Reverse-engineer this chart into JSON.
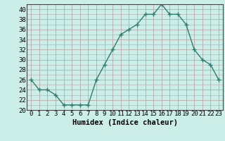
{
  "x": [
    0,
    1,
    2,
    3,
    4,
    5,
    6,
    7,
    8,
    9,
    10,
    11,
    12,
    13,
    14,
    15,
    16,
    17,
    18,
    19,
    20,
    21,
    22,
    23
  ],
  "y": [
    26,
    24,
    24,
    23,
    21,
    21,
    21,
    21,
    26,
    29,
    32,
    35,
    36,
    37,
    39,
    39,
    41,
    39,
    39,
    37,
    32,
    30,
    29,
    26
  ],
  "line_color": "#2e7d6e",
  "marker": "+",
  "marker_size": 4,
  "bg_color": "#cceee8",
  "grid_color": "#b8a8a8",
  "xlabel": "Humidex (Indice chaleur)",
  "xlim": [
    -0.5,
    23.5
  ],
  "ylim": [
    20,
    41
  ],
  "yticks": [
    20,
    22,
    24,
    26,
    28,
    30,
    32,
    34,
    36,
    38,
    40
  ],
  "xticks": [
    0,
    1,
    2,
    3,
    4,
    5,
    6,
    7,
    8,
    9,
    10,
    11,
    12,
    13,
    14,
    15,
    16,
    17,
    18,
    19,
    20,
    21,
    22,
    23
  ],
  "xlabel_fontsize": 7.5,
  "tick_fontsize": 6.5,
  "lw": 1.0
}
